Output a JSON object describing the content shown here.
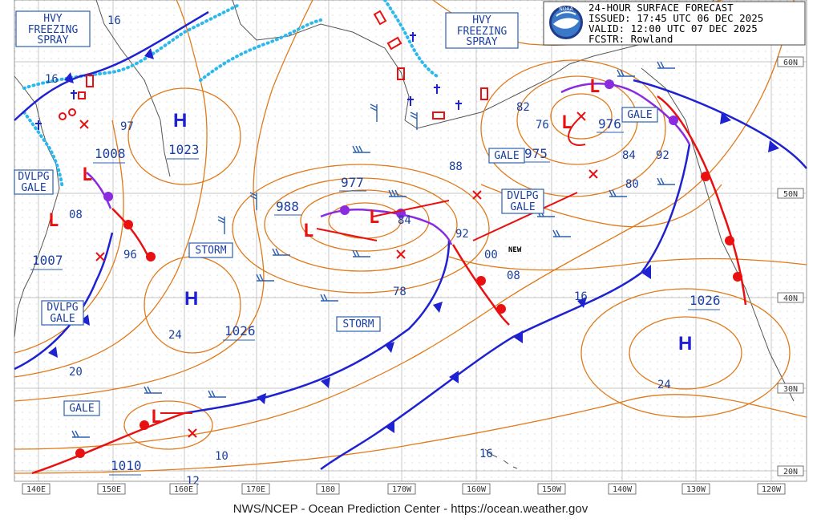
{
  "header": {
    "title": "24-HOUR SURFACE FORECAST",
    "issued": "ISSUED: 17:45 UTC 06 DEC 2025",
    "valid": "VALID:  12:00 UTC 07 DEC 2025",
    "forecaster": "FCSTR:  Rowland",
    "logo_text": "NOAA"
  },
  "footer": "NWS/NCEP - Ocean Prediction Center - https://ocean.weather.gov",
  "lat_labels": [
    "60N",
    "50N",
    "40N",
    "30N",
    "20N"
  ],
  "lon_labels": [
    "140E",
    "150E",
    "160E",
    "170E",
    "180",
    "170W",
    "160W",
    "150W",
    "140W",
    "130W",
    "120W"
  ],
  "warnings": {
    "hvy_spray_w": [
      "HVY",
      "FREEZING",
      "SPRAY"
    ],
    "hvy_spray_e": [
      "HVY",
      "FREEZING",
      "SPRAY"
    ],
    "dvlpg_gale_w": [
      "DVLPG",
      "GALE"
    ],
    "dvlpg_gale_sw": [
      "DVLPG",
      "GALE"
    ],
    "dvlpg_gale_c": [
      "DVLPG",
      "GALE"
    ],
    "gale_e": "GALE",
    "gale_c": "GALE",
    "gale_sw": "GALE",
    "storm_w": "STORM",
    "storm_c": "STORM"
  },
  "pressure_centers": {
    "h_nw": "H",
    "h_w": "H",
    "h_e": "H",
    "l_symbol": "L"
  },
  "pressure_values": {
    "p1023": "1023",
    "p1008": "1008",
    "p1007": "1007",
    "p1026w": "1026",
    "p1026e": "1026",
    "p1010": "1010",
    "p988": "988",
    "p977": "977",
    "p975": "975",
    "p976": "976"
  },
  "isobar_labels": {
    "i16a": "16",
    "i16b": "16",
    "i97": "97",
    "i08a": "08",
    "i96": "96",
    "i20": "20",
    "i24a": "24",
    "i84": "84",
    "i92a": "92",
    "i78": "78",
    "i88": "88",
    "i82": "82",
    "i76": "76",
    "i84b": "84",
    "i92b": "92",
    "i80": "80",
    "i00": "00",
    "i08b": "08",
    "i16c": "16",
    "i24b": "24",
    "i16d": "16",
    "i10": "10",
    "i12": "12"
  },
  "misc": {
    "new_label": "NEW"
  },
  "colors": {
    "isobar": "#e07a1a",
    "cold_front": "#1e22d0",
    "warm_front": "#e81010",
    "occluded_front": "#8a2be2",
    "ice": "#2ab8ee",
    "box_border": "#2a60b0",
    "box_text": "#1a3fa0",
    "land": "#555555",
    "grid": "#bbbbbb"
  }
}
